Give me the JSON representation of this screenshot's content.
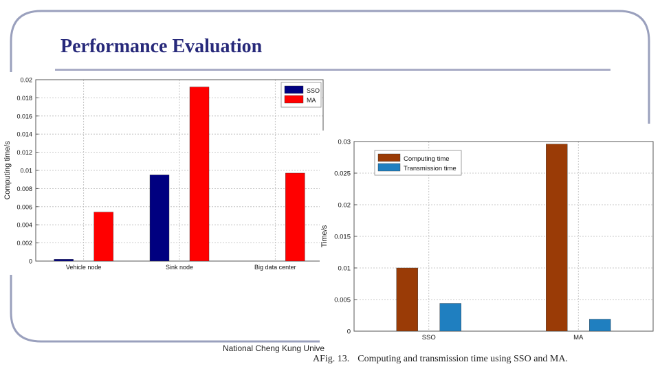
{
  "slide": {
    "title": "Performance Evaluation",
    "footer": "National Cheng Kung University",
    "caption_number": "AFig. 13.",
    "caption_text": "Computing and transmission time using SSO and MA.",
    "frame_color": "#9aa0bd",
    "title_color": "#27297a"
  },
  "chart_data": [
    {
      "type": "bar",
      "title": "",
      "xlabel": "",
      "ylabel": "Computing time/s",
      "categories": [
        "Vehicle node",
        "Sink node",
        "Big data center"
      ],
      "series": [
        {
          "name": "SSO",
          "values": [
            0.0002,
            0.0095,
            0.0
          ],
          "color": "#000080"
        },
        {
          "name": "MA",
          "values": [
            0.0054,
            0.0192,
            0.0097
          ],
          "color": "#ff0000"
        }
      ],
      "ylim": [
        0,
        0.02
      ],
      "yticks": [
        "0",
        "0.002",
        "0.004",
        "0.006",
        "0.008",
        "0.01",
        "0.012",
        "0.014",
        "0.016",
        "0.018",
        "0.02"
      ],
      "grid": true,
      "legend": "top-right"
    },
    {
      "type": "bar",
      "title": "",
      "xlabel": "",
      "ylabel": "Time/s",
      "categories": [
        "SSO",
        "MA"
      ],
      "series": [
        {
          "name": "Computing time",
          "values": [
            0.01,
            0.0296
          ],
          "color": "#9a3b06"
        },
        {
          "name": "Transmission time",
          "values": [
            0.0044,
            0.0019
          ],
          "color": "#1f7fc0"
        }
      ],
      "ylim": [
        0,
        0.03
      ],
      "yticks": [
        "0",
        "0.005",
        "0.01",
        "0.015",
        "0.02",
        "0.025",
        "0.03"
      ],
      "grid": true,
      "legend": "top-left"
    }
  ]
}
